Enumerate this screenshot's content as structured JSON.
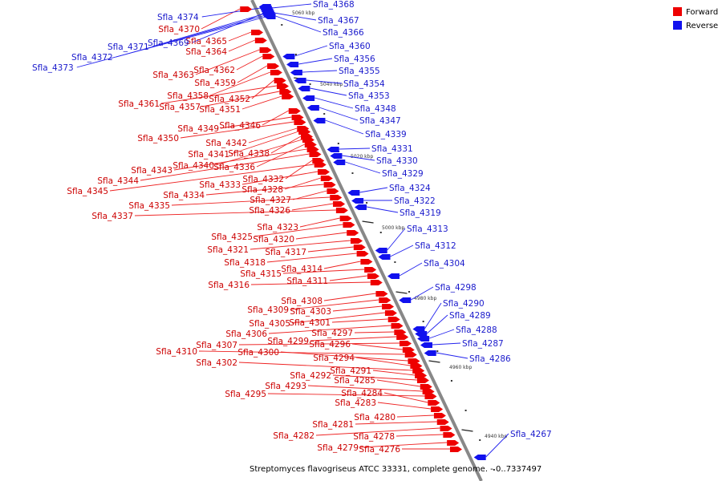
{
  "caption": "Streptomyces flavogriseus ATCC 33331, complete genome. - 0..7337497",
  "legend": {
    "forward": {
      "label": "Forward",
      "color": "#ee0000"
    },
    "reverse": {
      "label": "Reverse",
      "color": "#1111ee"
    }
  },
  "colors": {
    "backbone": "#888888",
    "forward_line": "#ee2222",
    "reverse_line": "#2222ee"
  },
  "ticks": [
    "5060 kbp",
    "5040 kbp",
    "5020 kbp",
    "5000 kbp",
    "4980 kbp",
    "4960 kbp",
    "4940 kbp"
  ],
  "forward_genes": [
    "Sfla_4370",
    "Sfla_4365",
    "Sfla_4364",
    "Sfla_4363",
    "Sfla_4362",
    "Sfla_4359",
    "Sfla_4358",
    "Sfla_4352",
    "Sfla_4361",
    "Sfla_4357",
    "Sfla_4351",
    "Sfla_4346",
    "Sfla_4349",
    "Sfla_4350",
    "Sfla_4342",
    "Sfla_4341",
    "Sfla_4338",
    "Sfla_4340",
    "Sfla_4336",
    "Sfla_4343",
    "Sfla_4344",
    "Sfla_4332",
    "Sfla_4345",
    "Sfla_4333",
    "Sfla_4328",
    "Sfla_4334",
    "Sfla_4327",
    "Sfla_4335",
    "Sfla_4326",
    "Sfla_4337",
    "Sfla_4323",
    "Sfla_4325",
    "Sfla_4320",
    "Sfla_4321",
    "Sfla_4317",
    "Sfla_4318",
    "Sfla_4314",
    "Sfla_4315",
    "Sfla_4311",
    "Sfla_4316",
    "Sfla_4308",
    "Sfla_4309",
    "Sfla_4303",
    "Sfla_4305",
    "Sfla_4301",
    "Sfla_4306",
    "Sfla_4297",
    "Sfla_4299",
    "Sfla_4307",
    "Sfla_4296",
    "Sfla_4310",
    "Sfla_4300",
    "Sfla_4294",
    "Sfla_4302",
    "Sfla_4291",
    "Sfla_4292",
    "Sfla_4285",
    "Sfla_4293",
    "Sfla_4295",
    "Sfla_4284",
    "Sfla_4283",
    "Sfla_4280",
    "Sfla_4281",
    "Sfla_4282",
    "Sfla_4278",
    "Sfla_4279",
    "Sfla_4276"
  ],
  "reverse_genes": [
    "Sfla_4374",
    "Sfla_4368",
    "Sfla_4367",
    "Sfla_4366",
    "Sfla_4369",
    "Sfla_4371",
    "Sfla_4372",
    "Sfla_4373",
    "Sfla_4360",
    "Sfla_4356",
    "Sfla_4355",
    "Sfla_4354",
    "Sfla_4353",
    "Sfla_4348",
    "Sfla_4347",
    "Sfla_4339",
    "Sfla_4331",
    "Sfla_4330",
    "Sfla_4329",
    "Sfla_4324",
    "Sfla_4322",
    "Sfla_4319",
    "Sfla_4313",
    "Sfla_4312",
    "Sfla_4304",
    "Sfla_4298",
    "Sfla_4290",
    "Sfla_4289",
    "Sfla_4288",
    "Sfla_4287",
    "Sfla_4286",
    "Sfla_4267"
  ]
}
